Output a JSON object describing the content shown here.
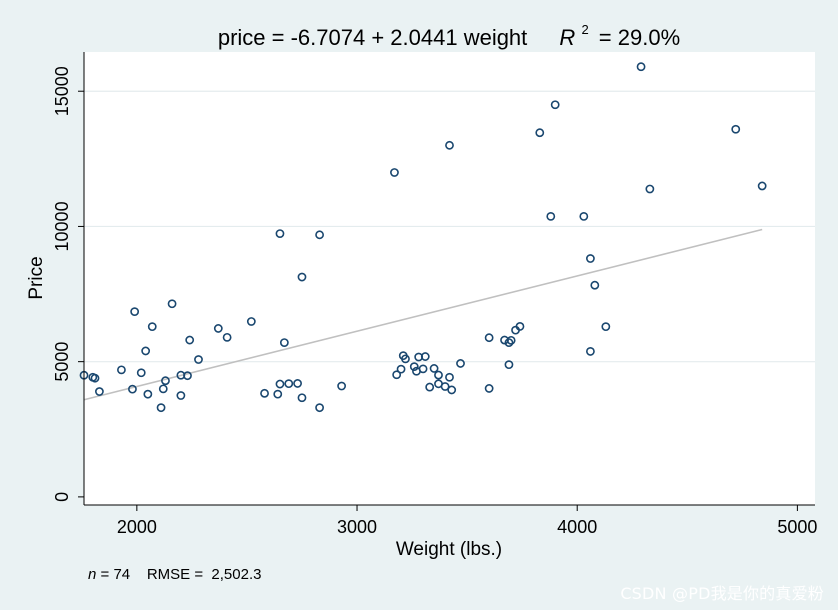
{
  "chart_data": {
    "type": "scatter",
    "title_main": "price = -6.7074 + 2.0441 weight",
    "title_r2_label": "R",
    "title_r2_exp": "2",
    "title_r2_value": "= 29.0%",
    "xlabel": "Weight (lbs.)",
    "ylabel": "Price",
    "xlim": [
      1760,
      5080
    ],
    "ylim": [
      -300,
      16450
    ],
    "x_ticks": [
      2000,
      3000,
      4000,
      5000
    ],
    "y_ticks": [
      0,
      5000,
      10000,
      15000
    ],
    "grid": true,
    "fit_line": {
      "intercept": -6.7074,
      "slope": 2.0441,
      "x_start": 1760,
      "x_end": 4840
    },
    "points": [
      [
        1760,
        4499
      ],
      [
        1800,
        4425
      ],
      [
        1810,
        4389
      ],
      [
        1830,
        3895
      ],
      [
        1930,
        4697
      ],
      [
        1980,
        3984
      ],
      [
        1990,
        6850
      ],
      [
        2020,
        4589
      ],
      [
        2040,
        5397
      ],
      [
        2050,
        3798
      ],
      [
        2070,
        6295
      ],
      [
        2110,
        3299
      ],
      [
        2120,
        3995
      ],
      [
        2130,
        4296
      ],
      [
        2160,
        7140
      ],
      [
        2200,
        4499
      ],
      [
        2200,
        3748
      ],
      [
        2230,
        4482
      ],
      [
        2240,
        5799
      ],
      [
        2280,
        5079
      ],
      [
        2370,
        6229
      ],
      [
        2410,
        5899
      ],
      [
        2520,
        6486
      ],
      [
        2580,
        3829
      ],
      [
        2640,
        3799
      ],
      [
        2650,
        4172
      ],
      [
        2650,
        9735
      ],
      [
        2670,
        5705
      ],
      [
        2690,
        4187
      ],
      [
        2730,
        4195
      ],
      [
        2750,
        8129
      ],
      [
        2750,
        3667
      ],
      [
        2830,
        3299
      ],
      [
        2830,
        9690
      ],
      [
        2930,
        4099
      ],
      [
        3170,
        11995
      ],
      [
        3180,
        4516
      ],
      [
        3200,
        4723
      ],
      [
        3210,
        5222
      ],
      [
        3220,
        5104
      ],
      [
        3260,
        4816
      ],
      [
        3270,
        4647
      ],
      [
        3280,
        5172
      ],
      [
        3300,
        4733
      ],
      [
        3310,
        5189
      ],
      [
        3330,
        4060
      ],
      [
        3350,
        4749
      ],
      [
        3370,
        4504
      ],
      [
        3370,
        4181
      ],
      [
        3400,
        4082
      ],
      [
        3420,
        13000
      ],
      [
        3420,
        4424
      ],
      [
        3430,
        3955
      ],
      [
        3470,
        4934
      ],
      [
        3600,
        5886
      ],
      [
        3600,
        4010
      ],
      [
        3670,
        5798
      ],
      [
        3690,
        4890
      ],
      [
        3690,
        5705
      ],
      [
        3700,
        5788
      ],
      [
        3720,
        6165
      ],
      [
        3740,
        6303
      ],
      [
        3830,
        13466
      ],
      [
        3880,
        10372
      ],
      [
        3900,
        14500
      ],
      [
        4030,
        10371
      ],
      [
        4060,
        8814
      ],
      [
        4060,
        5379
      ],
      [
        4080,
        7827
      ],
      [
        4130,
        6295
      ],
      [
        4290,
        15906
      ],
      [
        4330,
        11385
      ],
      [
        4720,
        13594
      ],
      [
        4840,
        11497
      ]
    ]
  },
  "footnote": {
    "n_label": "n",
    "n_value": "= 74",
    "rmse_label": "RMSE =",
    "rmse_value": "2,502.3"
  },
  "watermark": "CSDN @PD我是你的真爱粉",
  "colors": {
    "background": "#eaf2f3",
    "plot_bg": "#ffffff",
    "marker": "#1a476f",
    "fit_line": "#c0c0c0",
    "grid": "#e4ecee"
  }
}
